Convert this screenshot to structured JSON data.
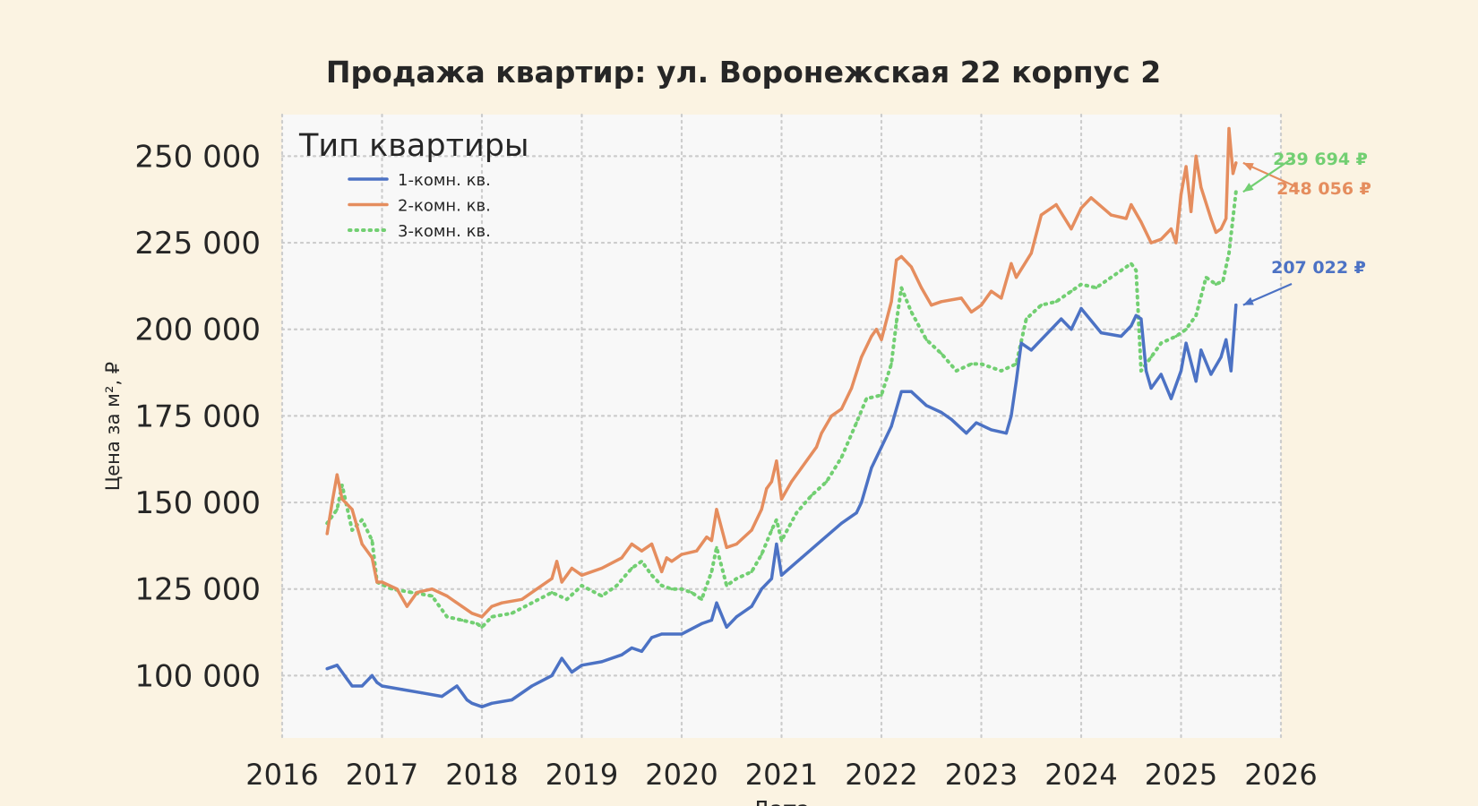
{
  "colors": {
    "page_bg": "#fbf3e2",
    "plot_bg": "#f8f8f8",
    "grid": "#cccccc",
    "text": "#262626"
  },
  "chart_data": {
    "type": "line",
    "title": "Продажа квартир: ул. Воронежская 22 корпус 2",
    "xlabel": "Дата",
    "ylabel": "Цена за м², ₽",
    "xlim": [
      2016,
      2026
    ],
    "ylim": [
      82000,
      262000
    ],
    "x_ticks": [
      2016,
      2017,
      2018,
      2019,
      2020,
      2021,
      2022,
      2023,
      2024,
      2025,
      2026
    ],
    "y_ticks": [
      100000,
      125000,
      150000,
      175000,
      200000,
      225000,
      250000
    ],
    "y_tick_labels": [
      "100 000",
      "125 000",
      "150 000",
      "175 000",
      "200 000",
      "225 000",
      "250 000"
    ],
    "grid": true,
    "legend": {
      "title": "Тип квартиры",
      "placement": "top-left"
    },
    "series": [
      {
        "name": "1-комн. кв.",
        "color": "#4c72c4",
        "style": "solid",
        "end_label": "207 022 ₽",
        "x": [
          2016.45,
          2016.55,
          2016.6,
          2016.65,
          2016.7,
          2016.8,
          2016.9,
          2016.95,
          2017.0,
          2017.2,
          2017.4,
          2017.6,
          2017.75,
          2017.8,
          2017.85,
          2017.9,
          2018.0,
          2018.1,
          2018.3,
          2018.5,
          2018.7,
          2018.8,
          2018.9,
          2019.0,
          2019.2,
          2019.4,
          2019.5,
          2019.6,
          2019.7,
          2019.8,
          2020.0,
          2020.2,
          2020.3,
          2020.35,
          2020.45,
          2020.55,
          2020.7,
          2020.8,
          2020.9,
          2020.95,
          2021.0,
          2021.2,
          2021.4,
          2021.6,
          2021.75,
          2021.8,
          2021.9,
          2022.0,
          2022.1,
          2022.2,
          2022.3,
          2022.45,
          2022.6,
          2022.7,
          2022.85,
          2022.95,
          2023.1,
          2023.25,
          2023.3,
          2023.35,
          2023.4,
          2023.5,
          2023.6,
          2023.7,
          2023.8,
          2023.9,
          2024.0,
          2024.2,
          2024.4,
          2024.5,
          2024.55,
          2024.6,
          2024.65,
          2024.7,
          2024.8,
          2024.9,
          2025.0,
          2025.05,
          2025.15,
          2025.2,
          2025.3,
          2025.4,
          2025.45,
          2025.5,
          2025.55
        ],
        "values": [
          102000,
          103000,
          101000,
          99000,
          97000,
          97000,
          100000,
          98000,
          97000,
          96000,
          95000,
          94000,
          97000,
          95000,
          93000,
          92000,
          91000,
          92000,
          93000,
          97000,
          100000,
          105000,
          101000,
          103000,
          104000,
          106000,
          108000,
          107000,
          111000,
          112000,
          112000,
          115000,
          116000,
          121000,
          114000,
          117000,
          120000,
          125000,
          128000,
          138000,
          129000,
          134000,
          139000,
          144000,
          147000,
          150000,
          160000,
          166000,
          172000,
          182000,
          182000,
          178000,
          176000,
          174000,
          170000,
          173000,
          171000,
          170000,
          175000,
          185000,
          196000,
          194000,
          197000,
          200000,
          203000,
          200000,
          206000,
          199000,
          198000,
          201000,
          204000,
          203000,
          188000,
          183000,
          187000,
          180000,
          188000,
          196000,
          185000,
          194000,
          187000,
          192000,
          197000,
          188000,
          207022
        ]
      },
      {
        "name": "2-комн. кв.",
        "color": "#e58d5e",
        "style": "solid",
        "end_label": "248 056 ₽",
        "x": [
          2016.45,
          2016.5,
          2016.55,
          2016.6,
          2016.7,
          2016.8,
          2016.9,
          2016.95,
          2017.0,
          2017.15,
          2017.25,
          2017.35,
          2017.5,
          2017.65,
          2017.8,
          2017.9,
          2018.0,
          2018.1,
          2018.2,
          2018.4,
          2018.55,
          2018.7,
          2018.75,
          2018.8,
          2018.85,
          2018.9,
          2019.0,
          2019.2,
          2019.4,
          2019.5,
          2019.6,
          2019.7,
          2019.8,
          2019.85,
          2019.9,
          2020.0,
          2020.15,
          2020.25,
          2020.3,
          2020.35,
          2020.45,
          2020.55,
          2020.7,
          2020.8,
          2020.85,
          2020.9,
          2020.95,
          2021.0,
          2021.1,
          2021.2,
          2021.35,
          2021.4,
          2021.5,
          2021.6,
          2021.7,
          2021.8,
          2021.9,
          2021.95,
          2022.0,
          2022.1,
          2022.15,
          2022.2,
          2022.3,
          2022.4,
          2022.5,
          2022.6,
          2022.8,
          2022.9,
          2023.0,
          2023.1,
          2023.2,
          2023.3,
          2023.35,
          2023.5,
          2023.6,
          2023.75,
          2023.9,
          2024.0,
          2024.1,
          2024.3,
          2024.45,
          2024.5,
          2024.6,
          2024.7,
          2024.8,
          2024.9,
          2024.95,
          2025.0,
          2025.05,
          2025.1,
          2025.15,
          2025.2,
          2025.3,
          2025.35,
          2025.4,
          2025.45,
          2025.48,
          2025.52,
          2025.55
        ],
        "values": [
          141000,
          150000,
          158000,
          151000,
          148000,
          138000,
          134000,
          127000,
          127000,
          125000,
          120000,
          124000,
          125000,
          123000,
          120000,
          118000,
          117000,
          120000,
          121000,
          122000,
          125000,
          128000,
          133000,
          127000,
          129000,
          131000,
          129000,
          131000,
          134000,
          138000,
          136000,
          138000,
          130000,
          134000,
          133000,
          135000,
          136000,
          140000,
          139000,
          148000,
          137000,
          138000,
          142000,
          148000,
          154000,
          156000,
          162000,
          151000,
          156000,
          160000,
          166000,
          170000,
          175000,
          177000,
          183000,
          192000,
          198000,
          200000,
          197000,
          208000,
          220000,
          221000,
          218000,
          212000,
          207000,
          208000,
          209000,
          205000,
          207000,
          211000,
          209000,
          219000,
          215000,
          222000,
          233000,
          236000,
          229000,
          235000,
          238000,
          233000,
          232000,
          236000,
          231000,
          225000,
          226000,
          229000,
          225000,
          239000,
          247000,
          234000,
          250000,
          241000,
          232000,
          228000,
          229000,
          232000,
          258000,
          245000,
          248056
        ]
      },
      {
        "name": "3-комн. кв.",
        "color": "#72cf72",
        "style": "dotted",
        "end_label": "239 694 ₽",
        "x": [
          2016.45,
          2016.55,
          2016.6,
          2016.7,
          2016.8,
          2016.9,
          2016.95,
          2017.1,
          2017.3,
          2017.5,
          2017.65,
          2017.8,
          2017.95,
          2018.0,
          2018.1,
          2018.3,
          2018.5,
          2018.7,
          2018.85,
          2019.0,
          2019.2,
          2019.35,
          2019.5,
          2019.6,
          2019.7,
          2019.8,
          2019.9,
          2020.0,
          2020.1,
          2020.2,
          2020.3,
          2020.35,
          2020.45,
          2020.55,
          2020.7,
          2020.8,
          2020.9,
          2020.95,
          2021.0,
          2021.15,
          2021.3,
          2021.45,
          2021.6,
          2021.75,
          2021.85,
          2022.0,
          2022.1,
          2022.15,
          2022.2,
          2022.3,
          2022.45,
          2022.6,
          2022.75,
          2022.9,
          2023.0,
          2023.2,
          2023.35,
          2023.45,
          2023.6,
          2023.75,
          2023.9,
          2024.0,
          2024.15,
          2024.35,
          2024.5,
          2024.55,
          2024.6,
          2024.7,
          2024.8,
          2024.95,
          2025.05,
          2025.15,
          2025.25,
          2025.35,
          2025.42,
          2025.48,
          2025.55
        ],
        "values": [
          144000,
          148000,
          155000,
          142000,
          145000,
          139000,
          127000,
          125000,
          124000,
          123000,
          117000,
          116000,
          115000,
          114000,
          117000,
          118000,
          121000,
          124000,
          122000,
          126000,
          123000,
          126000,
          131000,
          133000,
          129000,
          126000,
          125000,
          125000,
          124000,
          122000,
          130000,
          137000,
          126000,
          128000,
          130000,
          135000,
          142000,
          145000,
          139000,
          147000,
          152000,
          156000,
          163000,
          173000,
          180000,
          181000,
          190000,
          202000,
          212000,
          205000,
          197000,
          193000,
          188000,
          190000,
          190000,
          188000,
          190000,
          203000,
          207000,
          208000,
          211000,
          213000,
          212000,
          216000,
          219000,
          217000,
          188000,
          192000,
          196000,
          198000,
          200000,
          204000,
          215000,
          213000,
          214000,
          222000,
          239694
        ]
      }
    ]
  }
}
